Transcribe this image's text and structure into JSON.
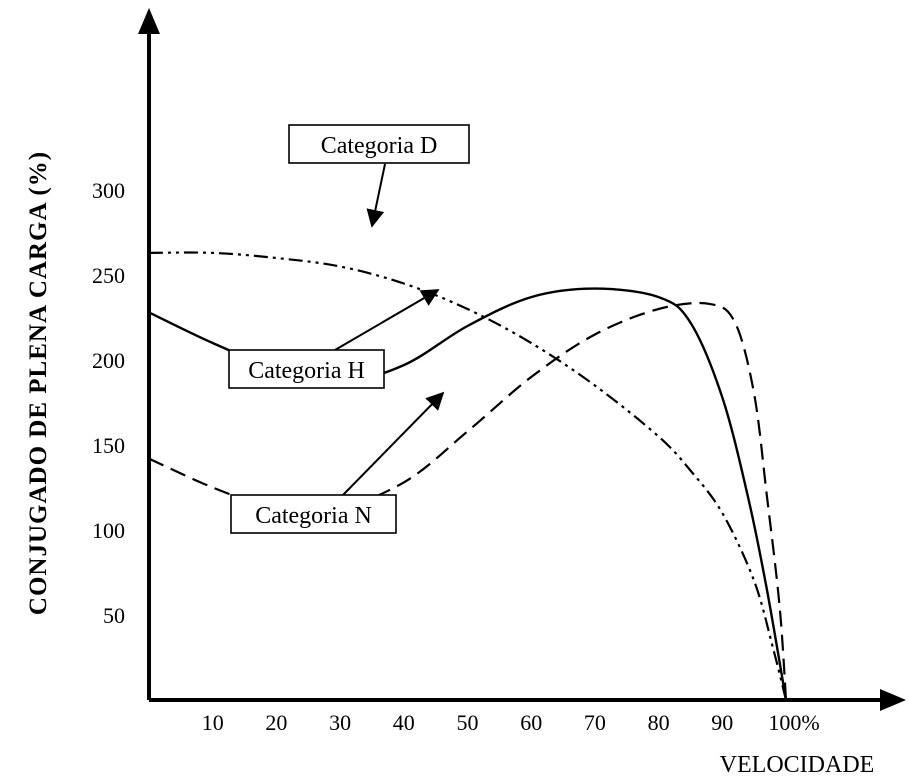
{
  "chart_data": {
    "type": "line",
    "title": "",
    "xlabel": "VELOCIDADE",
    "ylabel": "CONJUGADO DE PLENA CARGA (%)",
    "x_ticks": [
      "10",
      "20",
      "30",
      "40",
      "50",
      "60",
      "70",
      "80",
      "90",
      "100%"
    ],
    "y_ticks": [
      "50",
      "100",
      "150",
      "200",
      "250",
      "300"
    ],
    "xlim": [
      0,
      100
    ],
    "ylim": [
      0,
      300
    ],
    "grid": false,
    "series": [
      {
        "name": "Categoria D",
        "style": "dash-dot-dot",
        "points": [
          [
            0,
            263
          ],
          [
            10,
            263
          ],
          [
            20,
            260
          ],
          [
            30,
            255
          ],
          [
            40,
            245
          ],
          [
            50,
            230
          ],
          [
            60,
            210
          ],
          [
            70,
            185
          ],
          [
            80,
            155
          ],
          [
            85,
            135
          ],
          [
            90,
            110
          ],
          [
            95,
            70
          ],
          [
            98,
            30
          ],
          [
            100,
            0
          ]
        ]
      },
      {
        "name": "Categoria H",
        "style": "solid",
        "points": [
          [
            0,
            228
          ],
          [
            10,
            210
          ],
          [
            20,
            195
          ],
          [
            30,
            187
          ],
          [
            40,
            197
          ],
          [
            50,
            220
          ],
          [
            60,
            237
          ],
          [
            70,
            242
          ],
          [
            80,
            237
          ],
          [
            85,
            222
          ],
          [
            90,
            178
          ],
          [
            94,
            120
          ],
          [
            97,
            65
          ],
          [
            100,
            0
          ]
        ]
      },
      {
        "name": "Categoria N",
        "style": "dashed",
        "points": [
          [
            0,
            142
          ],
          [
            10,
            125
          ],
          [
            20,
            112
          ],
          [
            28,
            110
          ],
          [
            40,
            128
          ],
          [
            50,
            158
          ],
          [
            60,
            190
          ],
          [
            70,
            215
          ],
          [
            80,
            230
          ],
          [
            88,
            233
          ],
          [
            92,
            222
          ],
          [
            95,
            180
          ],
          [
            97,
            120
          ],
          [
            99,
            55
          ],
          [
            100,
            0
          ]
        ]
      }
    ],
    "annotations": [
      {
        "text": "Categoria D",
        "series": 0
      },
      {
        "text": "Categoria H",
        "series": 1
      },
      {
        "text": "Categoria N",
        "series": 2
      }
    ]
  }
}
